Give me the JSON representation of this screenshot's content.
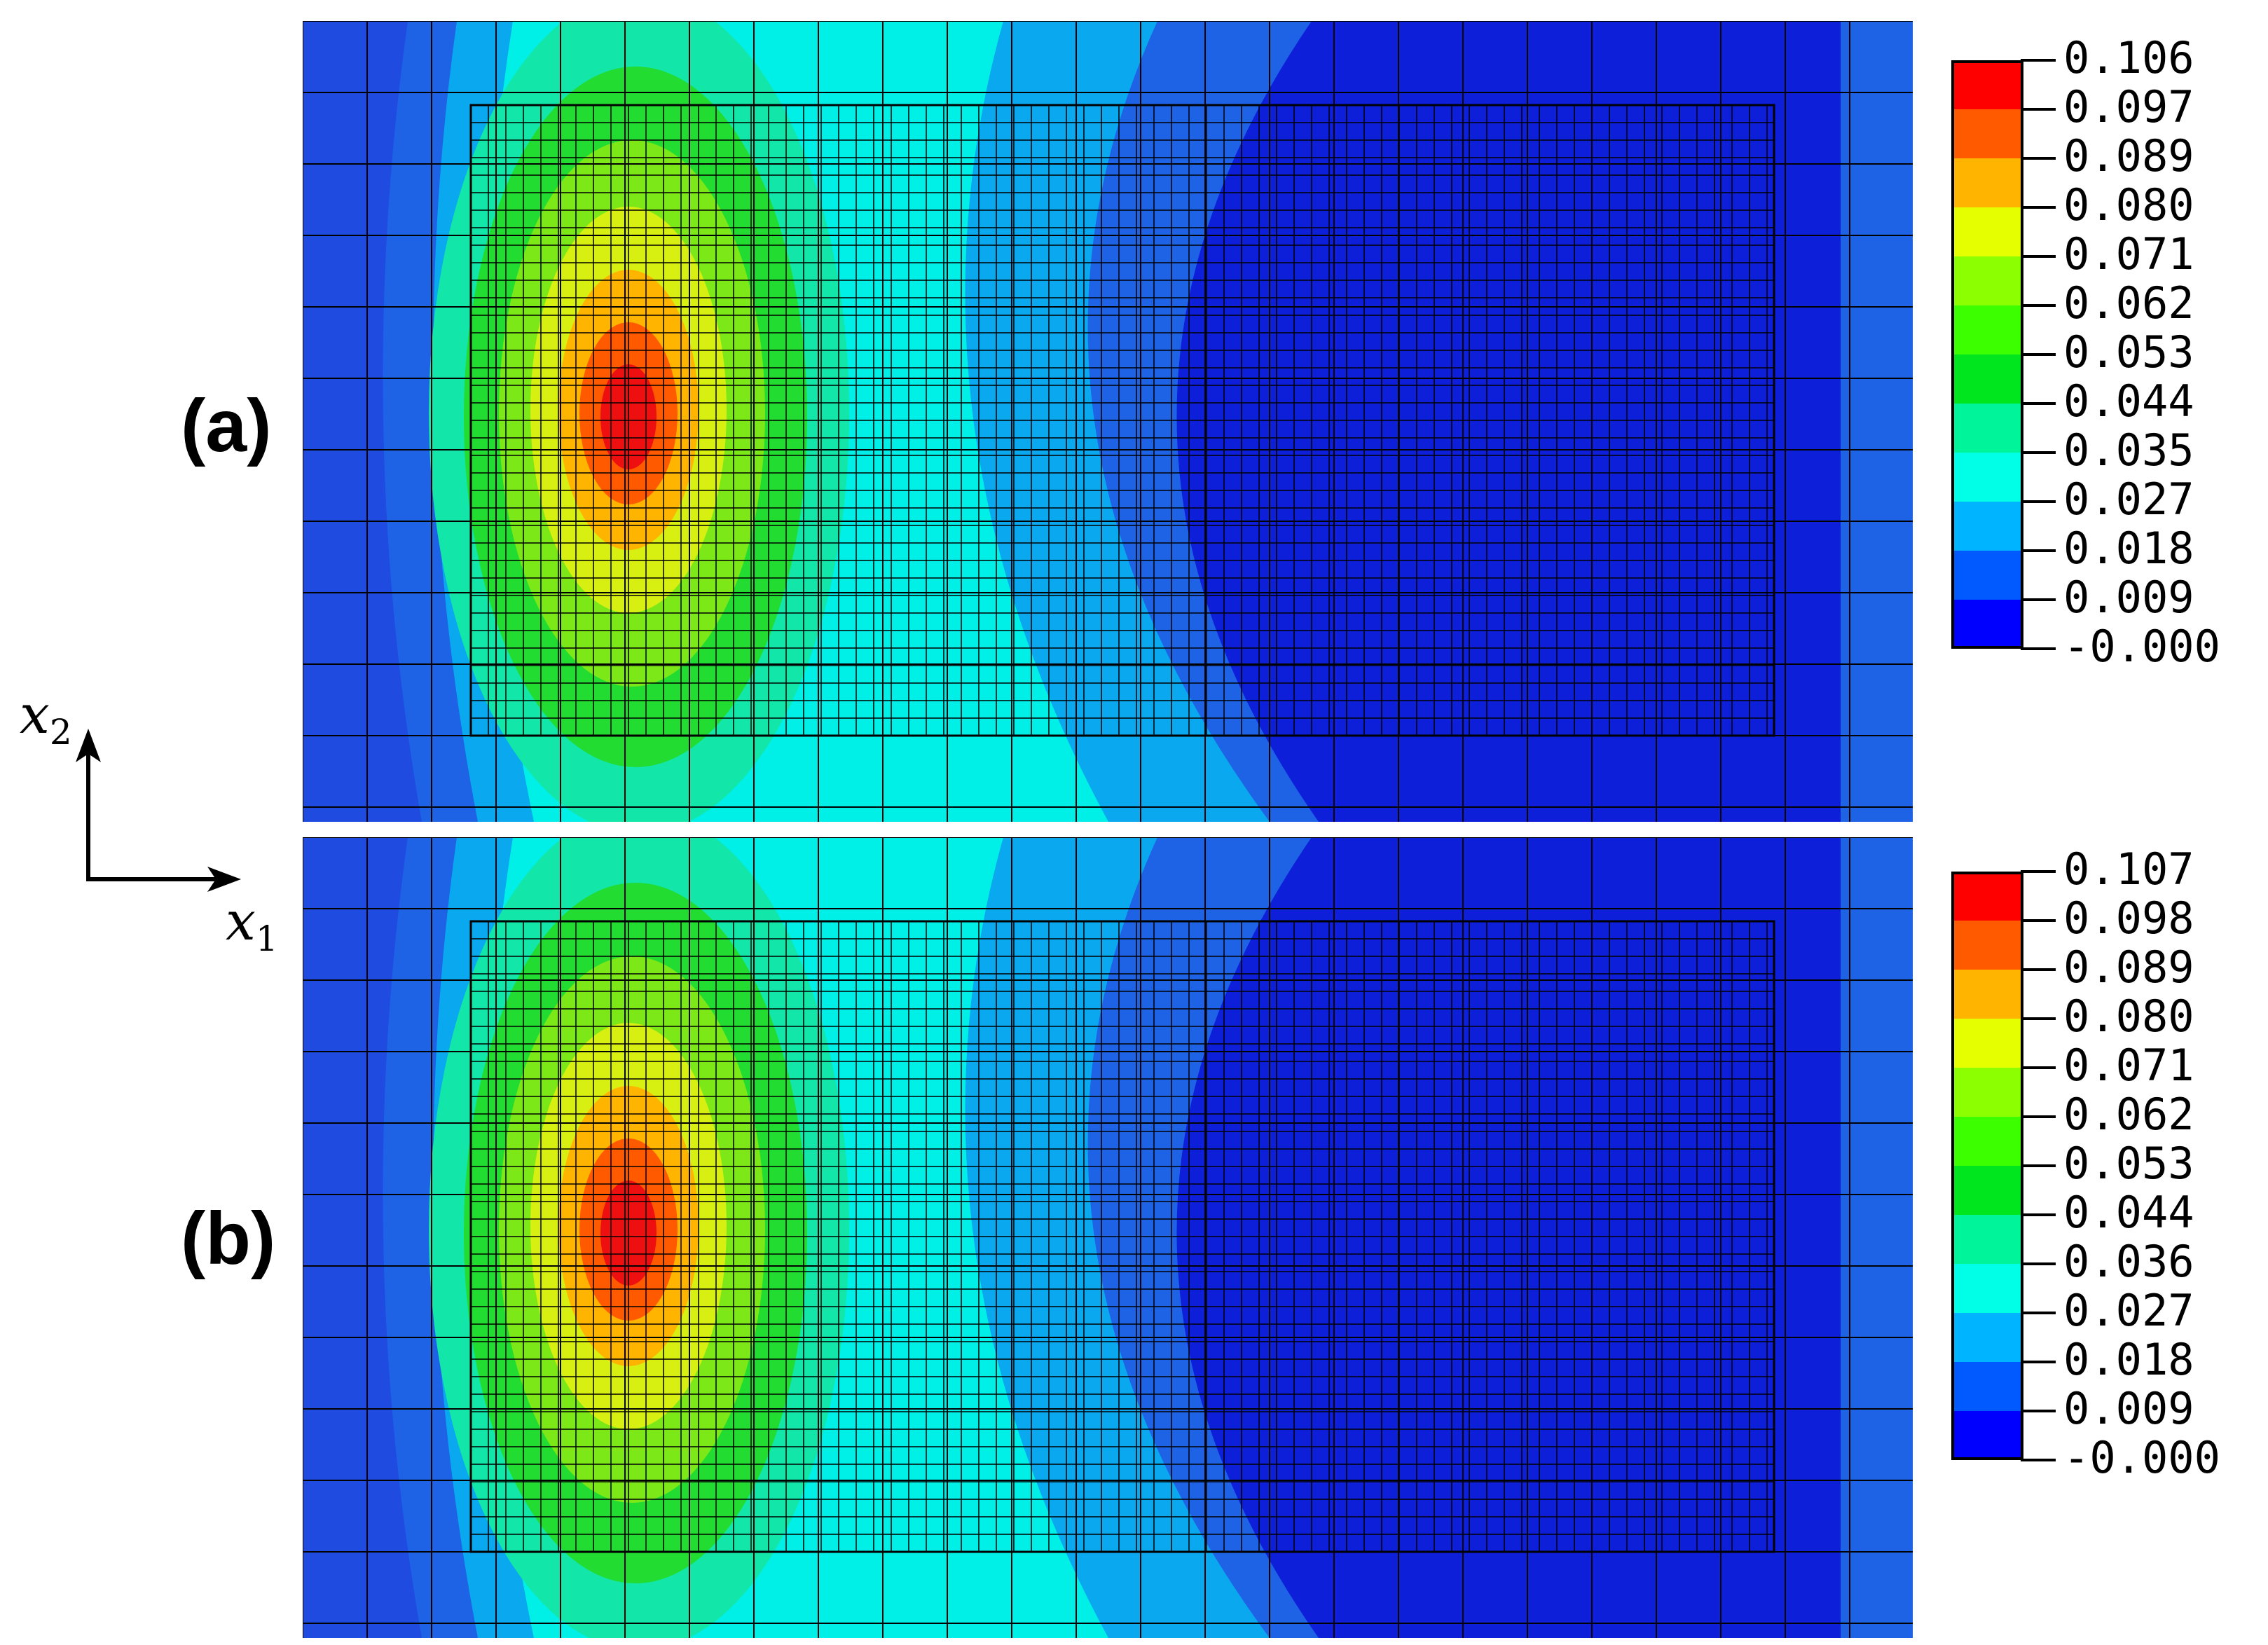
{
  "panels": [
    {
      "id": "a",
      "label": "(a)",
      "colorbar": {
        "labels": [
          "0.106",
          "0.097",
          "0.089",
          "0.080",
          "0.071",
          "0.062",
          "0.053",
          "0.044",
          "0.035",
          "0.027",
          "0.018",
          "0.009",
          "-0.000"
        ],
        "colors": [
          "#ff0000",
          "#ff5a00",
          "#ffb400",
          "#e6ff00",
          "#8cff00",
          "#3cff00",
          "#00e61e",
          "#00f59a",
          "#00ffe6",
          "#00b4ff",
          "#005aff",
          "#0000ff"
        ]
      }
    },
    {
      "id": "b",
      "label": "(b)",
      "colorbar": {
        "labels": [
          "0.107",
          "0.098",
          "0.089",
          "0.080",
          "0.071",
          "0.062",
          "0.053",
          "0.044",
          "0.036",
          "0.027",
          "0.018",
          "0.009",
          "-0.000"
        ],
        "colors": [
          "#ff0000",
          "#ff5a00",
          "#ffb400",
          "#e6ff00",
          "#8cff00",
          "#3cff00",
          "#00e61e",
          "#00f59a",
          "#00ffe6",
          "#00b4ff",
          "#005aff",
          "#0000ff"
        ]
      }
    }
  ],
  "axes": {
    "x_symbol": "x",
    "x_index": "1",
    "y_symbol": "x",
    "y_index": "2"
  },
  "plot_colors": {
    "outer_blue": "#1f4be0",
    "deep_blue": "#0d1fd9",
    "mid_blue": "#1e63e6",
    "light_blue": "#0aa8ef",
    "cyan": "#00f0e8",
    "aqua_green": "#12e6a8",
    "green": "#22dc32",
    "yellow_green": "#7de818",
    "yellow": "#d8ef12",
    "orange": "#ffb400",
    "dark_orange": "#ff5a00",
    "red": "#ee1010",
    "mesh_line": "#000000"
  }
}
